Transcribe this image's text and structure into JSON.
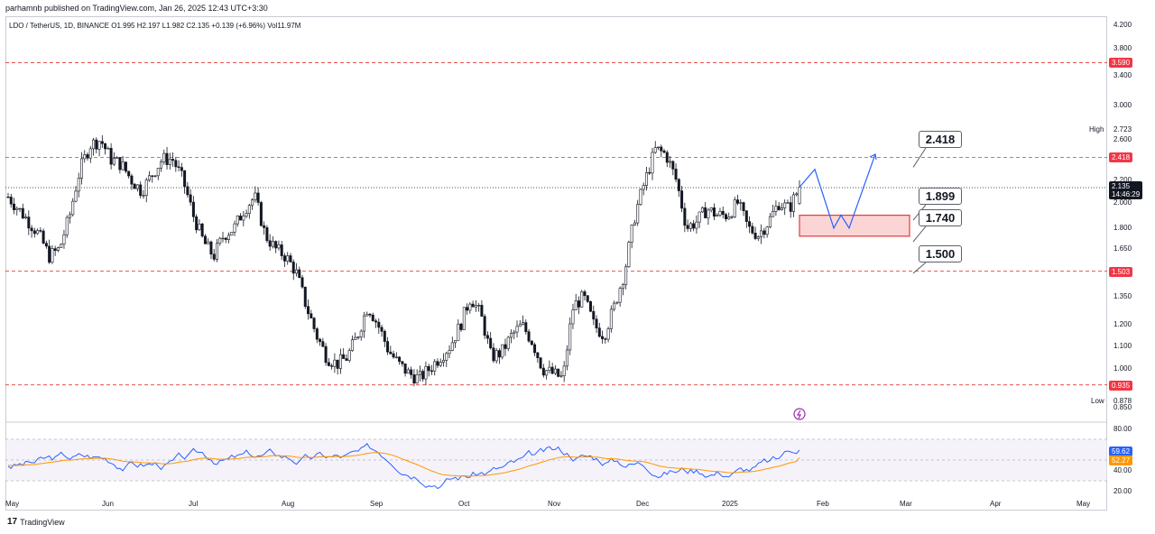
{
  "header": {
    "publish_text": "parhamnb published on TradingView.com, Jan 26, 2025 12:43 UTC+3:30",
    "symbol_line": "LDO / TetherUS, 1D, BINANCE  O1.995  H2.197  L1.982  C2.135  +0.139 (+6.96%)  Vol11.97M"
  },
  "footer": {
    "brand": "TradingView",
    "logo_glyph": "17"
  },
  "colors": {
    "up": "#131722",
    "down": "#131722",
    "level_line": "#e53935",
    "level_tag": "#f23645",
    "projection": "#2962ff",
    "rsi": "#2962ff",
    "rsi_ma": "#ff9800",
    "zone_fill": "#fbd5d5",
    "zone_border": "#e53935"
  },
  "price_axis": {
    "ticks": [
      "4.200",
      "3.800",
      "3.400",
      "3.000",
      "2.600",
      "2.200",
      "2.000",
      "1.800",
      "1.650",
      "1.500",
      "1.350",
      "1.200",
      "1.100",
      "1.000",
      "0.850"
    ],
    "high_label": "High",
    "high_value": "2.723",
    "low_label": "Low",
    "low_value": "0.878",
    "current_price": "2.135",
    "countdown": "14:46:29"
  },
  "levels": [
    {
      "value": "3.590"
    },
    {
      "value": "2.418"
    },
    {
      "value": "1.503"
    },
    {
      "value": "0.935"
    }
  ],
  "annotations": [
    {
      "text": "2.418"
    },
    {
      "text": "1.899"
    },
    {
      "text": "1.740"
    },
    {
      "text": "1.500"
    }
  ],
  "rsi": {
    "ticks": [
      "80.00",
      "40.00",
      "20.00"
    ],
    "rsi_value": "59.62",
    "ma_value": "52.27"
  },
  "time_axis": [
    "May",
    "Jun",
    "Jul",
    "Aug",
    "Sep",
    "Oct",
    "Nov",
    "Dec",
    "2025",
    "Feb",
    "Mar",
    "Apr",
    "May"
  ],
  "chart_data": {
    "type": "candlestick",
    "symbol": "LDO / TetherUS",
    "interval": "1D",
    "exchange": "BINANCE",
    "last_bar": {
      "open": 1.995,
      "high": 2.197,
      "low": 1.982,
      "close": 2.135,
      "change": 0.139,
      "change_pct": 6.96,
      "volume": "11.97M"
    },
    "approx_closes": [
      2.05,
      1.95,
      1.85,
      1.75,
      1.6,
      1.65,
      1.9,
      2.3,
      2.55,
      2.6,
      2.4,
      2.35,
      2.2,
      2.1,
      2.25,
      2.4,
      2.4,
      2.2,
      1.9,
      1.7,
      1.6,
      1.75,
      1.8,
      1.95,
      2.05,
      1.75,
      1.65,
      1.6,
      1.5,
      1.3,
      1.15,
      1.05,
      1.02,
      1.05,
      1.15,
      1.3,
      1.2,
      1.08,
      1.02,
      0.98,
      0.96,
      1.0,
      1.05,
      1.1,
      1.2,
      1.35,
      1.25,
      1.05,
      1.07,
      1.15,
      1.2,
      1.12,
      1.0,
      0.98,
      0.96,
      1.3,
      1.35,
      1.2,
      1.15,
      1.3,
      1.5,
      1.9,
      2.2,
      2.5,
      2.45,
      2.2,
      1.8,
      1.85,
      1.95,
      1.9,
      1.9,
      2.0,
      1.8,
      1.75,
      1.85,
      2.0,
      1.95,
      2.135
    ],
    "horizontal_levels": [
      3.59,
      2.418,
      1.503,
      0.935
    ],
    "labeled_targets": [
      2.418,
      1.899,
      1.74,
      1.5
    ],
    "demand_zone": [
      1.74,
      1.899
    ],
    "projection_path": [
      2.135,
      2.3,
      1.8,
      1.9,
      1.8,
      2.45
    ],
    "rsi_last": 59.62,
    "rsi_ma_last": 52.27,
    "rsi_levels": [
      70,
      30
    ]
  }
}
